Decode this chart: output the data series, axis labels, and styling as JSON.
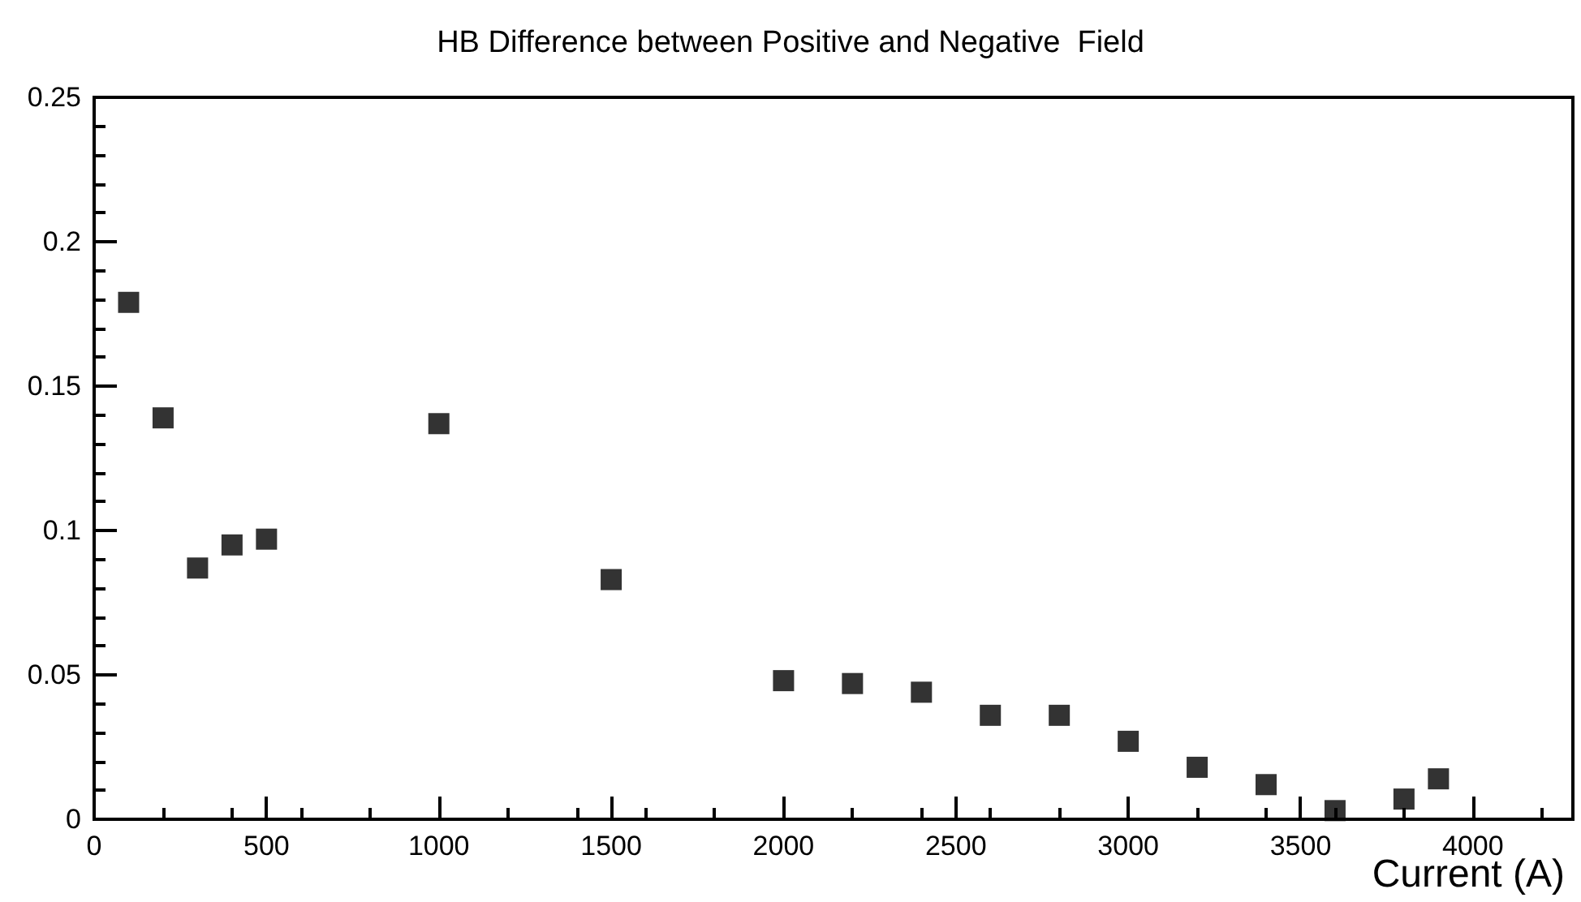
{
  "chart_data": {
    "type": "scatter",
    "title": "HB Difference between Positive and Negative  Field",
    "xlabel": "Current (A)",
    "x": [
      100,
      200,
      300,
      400,
      500,
      1000,
      1500,
      2000,
      2200,
      2400,
      2600,
      2800,
      3000,
      3200,
      3400,
      3600,
      3800,
      3900
    ],
    "series": [
      {
        "color": "#000000",
        "values": [
          0.179,
          0.139,
          0.087,
          0.095,
          0.097,
          0.137,
          0.083,
          0.048,
          0.047,
          0.044,
          0.036,
          0.036,
          0.027,
          0.018,
          0.012,
          0.003,
          0.007,
          0.014
        ]
      }
    ],
    "xlim": [
      0,
      4290
    ],
    "xticks": [
      0,
      500,
      1000,
      1500,
      2000,
      2500,
      3000,
      3500,
      4000
    ],
    "ylim": [
      0,
      0.25
    ],
    "yticks": [
      0,
      0.05,
      0.1,
      0.15,
      0.2,
      0.25
    ],
    "marker": "square",
    "grid": false
  }
}
